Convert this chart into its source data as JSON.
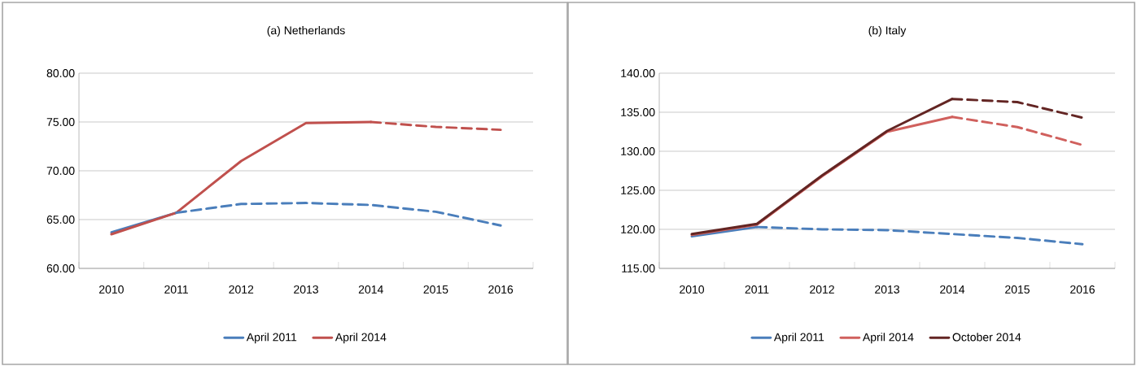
{
  "chart_data": [
    {
      "type": "line",
      "title": "(a) Netherlands",
      "categories": [
        "2010",
        "2011",
        "2012",
        "2013",
        "2014",
        "2015",
        "2016"
      ],
      "ylim": [
        60,
        80
      ],
      "yticks": [
        {
          "value": 60,
          "label": "60.00"
        },
        {
          "value": 65,
          "label": "65.00"
        },
        {
          "value": 70,
          "label": "70.00"
        },
        {
          "value": 75,
          "label": "75.00"
        },
        {
          "value": 80,
          "label": "80.00"
        }
      ],
      "grid": "y",
      "legend": "bottom",
      "marker": "none",
      "series": [
        {
          "name": "April 2011",
          "color": "#4a7ebb",
          "line_style": "solid",
          "values": [
            63.7,
            65.7,
            null,
            null,
            null,
            null,
            null
          ]
        },
        {
          "name": "April 2014",
          "color": "#c0504d",
          "line_style": "solid",
          "values": [
            63.5,
            65.7,
            71.0,
            74.9,
            75.0,
            null,
            null
          ]
        },
        {
          "color": "#4a7ebb",
          "line_style": "dashed",
          "values": [
            null,
            65.7,
            66.6,
            66.7,
            66.5,
            65.8,
            64.4
          ]
        },
        {
          "color": "#c0504d",
          "line_style": "dashed",
          "values": [
            null,
            null,
            null,
            null,
            75.0,
            74.5,
            74.2
          ]
        }
      ]
    },
    {
      "type": "line",
      "title": "(b) Italy",
      "categories": [
        "2010",
        "2011",
        "2012",
        "2013",
        "2014",
        "2015",
        "2016"
      ],
      "ylim": [
        115,
        140
      ],
      "yticks": [
        {
          "value": 115,
          "label": "115.00"
        },
        {
          "value": 120,
          "label": "120.00"
        },
        {
          "value": 125,
          "label": "125.00"
        },
        {
          "value": 130,
          "label": "130.00"
        },
        {
          "value": 135,
          "label": "135.00"
        },
        {
          "value": 140,
          "label": "140.00"
        }
      ],
      "grid": "y",
      "legend": "bottom",
      "marker": "none",
      "series": [
        {
          "name": "April 2011",
          "color": "#4a7ebb",
          "line_style": "solid",
          "values": [
            119.1,
            120.3,
            null,
            null,
            null,
            null,
            null
          ]
        },
        {
          "name": "April 2014",
          "color": "#d0605d",
          "line_style": "solid",
          "values": [
            119.3,
            120.6,
            126.8,
            132.5,
            134.4,
            null,
            null
          ]
        },
        {
          "name": "October 2014",
          "color": "#632523",
          "line_style": "solid",
          "values": [
            119.4,
            120.7,
            126.9,
            132.6,
            136.7,
            null,
            null
          ]
        },
        {
          "color": "#4a7ebb",
          "line_style": "dashed",
          "values": [
            null,
            120.3,
            120.0,
            119.9,
            119.4,
            118.9,
            118.1
          ]
        },
        {
          "color": "#d0605d",
          "line_style": "dashed",
          "values": [
            null,
            null,
            null,
            null,
            134.4,
            133.1,
            130.8
          ]
        },
        {
          "color": "#632523",
          "line_style": "dashed",
          "values": [
            null,
            null,
            null,
            null,
            136.7,
            136.3,
            134.3
          ]
        }
      ]
    }
  ]
}
